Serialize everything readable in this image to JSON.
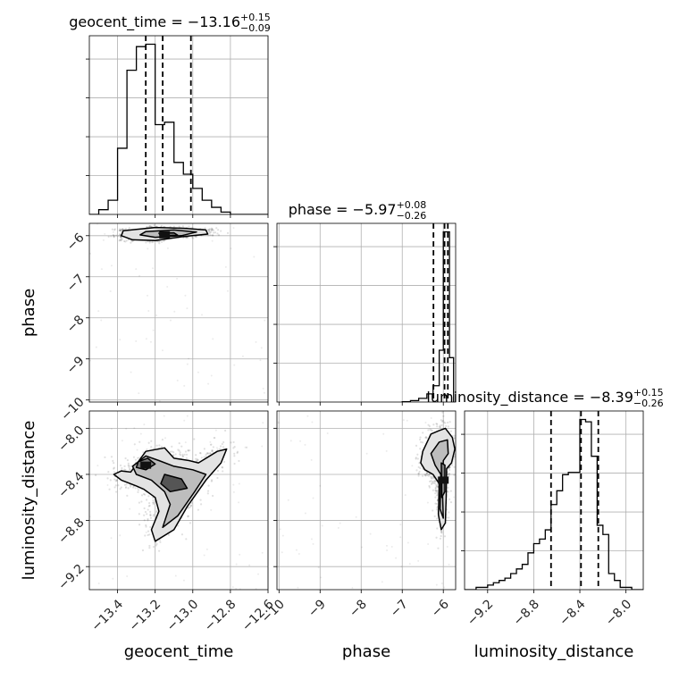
{
  "chart_data": {
    "type": "corner",
    "parameters": [
      "geocent_time",
      "phase",
      "luminosity_distance"
    ],
    "grid": true,
    "marginals": [
      {
        "parameter": "geocent_time",
        "title": {
          "prefix": "geocent_time = ",
          "median": "−13.16",
          "plus": "+0.15",
          "minus": "−0.09"
        },
        "range": [
          -13.55,
          -12.6
        ],
        "quantiles": [
          -13.25,
          -13.16,
          -13.01
        ],
        "bin_edges": [
          -13.55,
          -13.5,
          -13.45,
          -13.4,
          -13.35,
          -13.3,
          -13.25,
          -13.2,
          -13.15,
          -13.1,
          -13.05,
          -13.0,
          -12.95,
          -12.9,
          -12.85,
          -12.8,
          -12.75,
          -12.7,
          -12.65,
          -12.6
        ],
        "counts": [
          0,
          0.1,
          0.3,
          1.4,
          3.05,
          3.55,
          3.6,
          1.9,
          1.95,
          1.1,
          0.85,
          0.55,
          0.3,
          0.15,
          0.05,
          0,
          0,
          0,
          0
        ]
      },
      {
        "parameter": "phase",
        "title": {
          "prefix": "phase = ",
          "median": "−5.97",
          "plus": "+0.08",
          "minus": "−0.26"
        },
        "range": [
          -10.05,
          -5.7
        ],
        "quantiles": [
          -6.24,
          -5.97,
          -5.89
        ],
        "bin_edges": [
          -7.0,
          -6.8,
          -6.6,
          -6.4,
          -6.25,
          -6.1,
          -6.0,
          -5.85,
          -5.75
        ],
        "counts": [
          0.02,
          0.1,
          0.25,
          0.55,
          1.1,
          3.5,
          11.5,
          3.0
        ]
      },
      {
        "parameter": "luminosity_distance",
        "title": {
          "prefix": "luminosity_distance = ",
          "median": "−8.39",
          "plus": "+0.15",
          "minus": "−0.26"
        },
        "range": [
          -9.4,
          -7.85
        ],
        "quantiles": [
          -8.65,
          -8.39,
          -8.24
        ],
        "bin_edges": [
          -9.4,
          -9.35,
          -9.3,
          -9.25,
          -9.2,
          -9.15,
          -9.1,
          -9.05,
          -9.0,
          -8.95,
          -8.9,
          -8.85,
          -8.8,
          -8.75,
          -8.7,
          -8.65,
          -8.6,
          -8.55,
          -8.5,
          -8.45,
          -8.4,
          -8.35,
          -8.3,
          -8.25,
          -8.2,
          -8.15,
          -8.1,
          -8.05,
          -8.0,
          -7.95,
          -7.9,
          -7.85
        ],
        "counts": [
          0,
          0,
          0.05,
          0.05,
          0.1,
          0.15,
          0.2,
          0.25,
          0.35,
          0.45,
          0.55,
          0.8,
          1.0,
          1.1,
          1.3,
          1.85,
          2.15,
          2.5,
          2.55,
          2.55,
          3.7,
          3.65,
          2.9,
          1.4,
          1.2,
          0.35,
          0.2,
          0.05,
          0.05,
          0,
          0
        ]
      }
    ],
    "joint": [
      {
        "x": "geocent_time",
        "y": "phase",
        "x_range": [
          -13.55,
          -12.6
        ],
        "y_range": [
          -10.05,
          -5.7
        ],
        "density_peak": [
          -13.15,
          -5.98
        ],
        "contours": [
          [
            [
              -13.37,
              -5.88
            ],
            [
              -13.2,
              -5.8
            ],
            [
              -13.05,
              -5.82
            ],
            [
              -12.93,
              -5.86
            ],
            [
              -12.92,
              -5.96
            ],
            [
              -13.05,
              -6.02
            ],
            [
              -13.2,
              -6.12
            ],
            [
              -13.32,
              -6.1
            ],
            [
              -13.38,
              -6.0
            ]
          ],
          [
            [
              -13.25,
              -5.9
            ],
            [
              -13.1,
              -5.86
            ],
            [
              -12.98,
              -5.91
            ],
            [
              -13.06,
              -6.0
            ],
            [
              -13.2,
              -6.04
            ],
            [
              -13.28,
              -5.98
            ]
          ],
          [
            [
              -13.18,
              -5.94
            ],
            [
              -13.1,
              -5.93
            ],
            [
              -13.08,
              -5.99
            ],
            [
              -13.17,
              -6.01
            ]
          ]
        ]
      },
      {
        "x": "geocent_time",
        "y": "luminosity_distance",
        "x_range": [
          -13.55,
          -12.6
        ],
        "y_range": [
          -9.4,
          -7.85
        ],
        "density_peak": [
          -13.25,
          -8.32
        ],
        "contours": [
          [
            [
              -13.33,
              -8.38
            ],
            [
              -13.25,
              -8.2
            ],
            [
              -13.15,
              -8.17
            ],
            [
              -13.1,
              -8.26
            ],
            [
              -13.02,
              -8.28
            ],
            [
              -12.97,
              -8.3
            ],
            [
              -12.87,
              -8.2
            ],
            [
              -12.82,
              -8.18
            ],
            [
              -12.85,
              -8.3
            ],
            [
              -12.93,
              -8.45
            ],
            [
              -13.03,
              -8.68
            ],
            [
              -13.1,
              -8.88
            ],
            [
              -13.2,
              -8.98
            ],
            [
              -13.22,
              -8.88
            ],
            [
              -13.18,
              -8.72
            ],
            [
              -13.2,
              -8.6
            ],
            [
              -13.26,
              -8.53
            ],
            [
              -13.3,
              -8.5
            ],
            [
              -13.38,
              -8.45
            ],
            [
              -13.42,
              -8.4
            ],
            [
              -13.38,
              -8.37
            ]
          ],
          [
            [
              -13.32,
              -8.33
            ],
            [
              -13.25,
              -8.24
            ],
            [
              -13.18,
              -8.28
            ],
            [
              -13.1,
              -8.33
            ],
            [
              -13.0,
              -8.36
            ],
            [
              -12.93,
              -8.4
            ],
            [
              -12.99,
              -8.55
            ],
            [
              -13.08,
              -8.76
            ],
            [
              -13.16,
              -8.86
            ],
            [
              -13.12,
              -8.66
            ],
            [
              -13.15,
              -8.55
            ],
            [
              -13.22,
              -8.45
            ],
            [
              -13.3,
              -8.4
            ]
          ],
          [
            [
              -13.29,
              -8.29
            ],
            [
              -13.24,
              -8.26
            ],
            [
              -13.2,
              -8.31
            ],
            [
              -13.25,
              -8.36
            ],
            [
              -13.3,
              -8.34
            ]
          ],
          [
            [
              -13.15,
              -8.4
            ],
            [
              -13.06,
              -8.44
            ],
            [
              -13.03,
              -8.52
            ],
            [
              -13.12,
              -8.55
            ],
            [
              -13.17,
              -8.48
            ]
          ]
        ]
      },
      {
        "x": "phase",
        "y": "luminosity_distance",
        "x_range": [
          -10.05,
          -5.7
        ],
        "y_range": [
          -9.4,
          -7.85
        ],
        "density_peak": [
          -6.0,
          -8.45
        ],
        "contours": [
          [
            [
              -6.5,
              -8.2
            ],
            [
              -6.3,
              -8.05
            ],
            [
              -6.1,
              -8.02
            ],
            [
              -5.95,
              -8.0
            ],
            [
              -5.78,
              -8.08
            ],
            [
              -5.72,
              -8.18
            ],
            [
              -5.8,
              -8.3
            ],
            [
              -5.92,
              -8.35
            ],
            [
              -5.93,
              -8.6
            ],
            [
              -5.95,
              -8.82
            ],
            [
              -6.05,
              -8.88
            ],
            [
              -6.12,
              -8.75
            ],
            [
              -6.1,
              -8.48
            ],
            [
              -6.25,
              -8.4
            ],
            [
              -6.45,
              -8.36
            ],
            [
              -6.55,
              -8.3
            ]
          ],
          [
            [
              -6.3,
              -8.22
            ],
            [
              -6.1,
              -8.12
            ],
            [
              -5.9,
              -8.1
            ],
            [
              -5.88,
              -8.22
            ],
            [
              -6.0,
              -8.28
            ],
            [
              -6.02,
              -8.55
            ],
            [
              -6.0,
              -8.78
            ],
            [
              -6.08,
              -8.7
            ],
            [
              -6.06,
              -8.4
            ],
            [
              -6.2,
              -8.32
            ]
          ],
          [
            [
              -6.05,
              -8.3
            ],
            [
              -5.96,
              -8.32
            ],
            [
              -5.96,
              -8.55
            ],
            [
              -6.04,
              -8.6
            ]
          ]
        ]
      }
    ],
    "axes": {
      "geocent_time": {
        "label": "geocent_time",
        "ticks": [
          -13.4,
          -13.2,
          -13.0,
          -12.8,
          -12.6
        ],
        "tick_labels": [
          "−13.4",
          "−13.2",
          "−13.0",
          "−12.8",
          "−12.6"
        ]
      },
      "phase": {
        "label": "phase",
        "ticks": [
          -10,
          -9,
          -8,
          -7,
          -6
        ],
        "tick_labels": [
          "−10",
          "−9",
          "−8",
          "−7",
          "−6"
        ]
      },
      "luminosity_distance": {
        "label": "luminosity_distance",
        "ticks": [
          -9.2,
          -8.8,
          -8.4,
          -8.0
        ],
        "tick_labels": [
          "−9.2",
          "−8.8",
          "−8.4",
          "−8.0"
        ]
      }
    }
  }
}
